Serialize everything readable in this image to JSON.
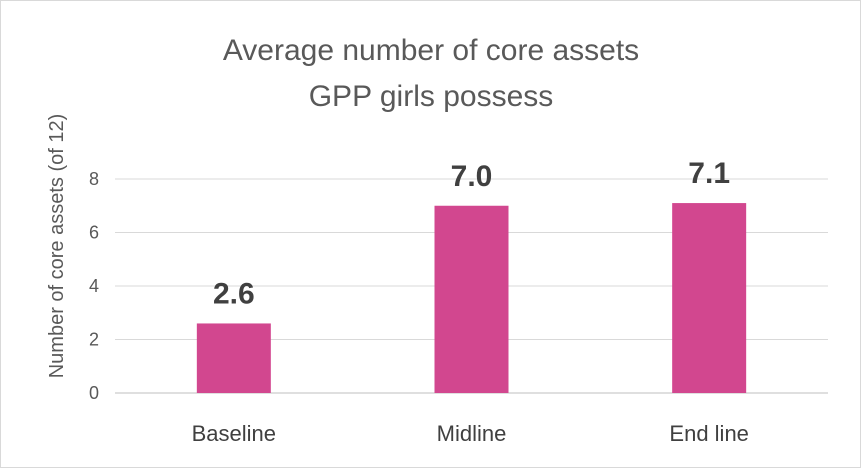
{
  "chart_data": {
    "type": "bar",
    "title_lines": [
      "Average number of core assets",
      "GPP girls possess"
    ],
    "ylabel": "Number of core assets (of 12)",
    "xlabel": "",
    "categories": [
      "Baseline",
      "Midline",
      "End line"
    ],
    "values": [
      2.6,
      7.0,
      7.1
    ],
    "data_labels": [
      "2.6",
      "7.0",
      "7.1"
    ],
    "ylim": [
      0,
      8
    ],
    "yticks": [
      0,
      2,
      4,
      6,
      8
    ],
    "grid": true,
    "legend": "none",
    "bar_color": "#d2478f"
  }
}
